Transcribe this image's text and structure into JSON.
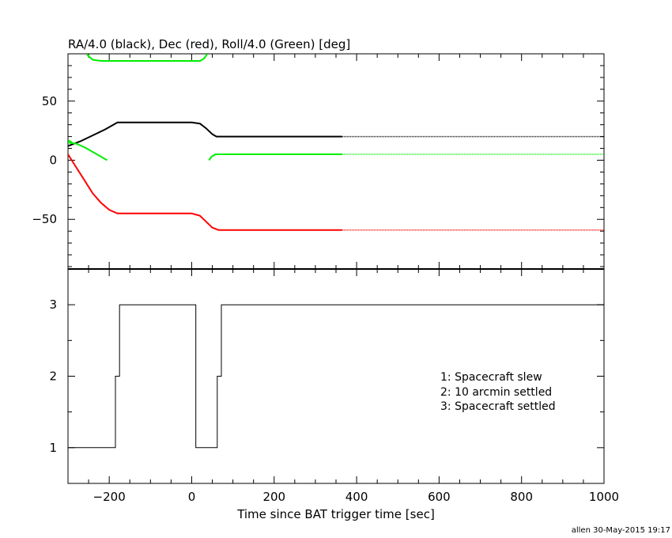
{
  "top_panel": {
    "title": "RA/4.0 (black), Dec (red), Roll/4.0 (Green) [deg]"
  },
  "bottom_panel": {
    "xlabel": "Time since BAT trigger time [sec]",
    "legend": [
      "1: Spacecraft slew",
      "2: 10 arcmin settled",
      "3: Spacecraft settled"
    ]
  },
  "footer": {
    "credit": "allen 30-May-2015 19:17"
  },
  "chart_data": [
    {
      "type": "line",
      "title": "RA/4.0 (black), Dec (red), Roll/4.0 (Green) [deg]",
      "xlim": [
        -300,
        1000
      ],
      "ylim": [
        -92,
        90
      ],
      "yticks": [
        -50,
        0,
        50
      ],
      "xticks": [
        -200,
        0,
        200,
        400,
        600,
        800,
        1000
      ],
      "tick_labels": {
        "-50": "−50",
        "0": "0",
        "50": "50"
      },
      "colors": {
        "ra": "#000000",
        "dec": "#ff0000",
        "roll": "#00ee00"
      },
      "series": [
        {
          "key": "ra",
          "solid": [
            [
              -300,
              12
            ],
            [
              -270,
              16
            ],
            [
              -240,
              21
            ],
            [
              -210,
              26
            ],
            [
              -180,
              32
            ],
            [
              -150,
              32
            ],
            [
              0,
              32
            ],
            [
              20,
              31
            ],
            [
              35,
              27
            ],
            [
              50,
              22
            ],
            [
              60,
              20
            ],
            [
              70,
              20
            ],
            [
              365,
              20
            ]
          ],
          "dotted": [
            [
              365,
              20
            ],
            [
              1000,
              20
            ]
          ]
        },
        {
          "key": "dec",
          "solid": [
            [
              -300,
              5
            ],
            [
              -280,
              -6
            ],
            [
              -260,
              -17
            ],
            [
              -240,
              -28
            ],
            [
              -220,
              -36
            ],
            [
              -200,
              -42
            ],
            [
              -180,
              -45
            ],
            [
              0,
              -45
            ],
            [
              20,
              -47
            ],
            [
              35,
              -52
            ],
            [
              50,
              -57
            ],
            [
              65,
              -59
            ],
            [
              365,
              -59
            ]
          ],
          "dotted": [
            [
              365,
              -59
            ],
            [
              1000,
              -59
            ]
          ]
        },
        {
          "key": "roll",
          "segments": [
            [
              [
                -300,
                15
              ],
              [
                -280,
                14
              ],
              [
                -260,
                11
              ],
              [
                -240,
                7
              ],
              [
                -220,
                3
              ],
              [
                -205,
                0
              ]
            ],
            [
              [
                -300,
                17
              ],
              [
                -290,
                15
              ]
            ],
            [
              [
                -255,
                90
              ],
              [
                -250,
                88
              ],
              [
                -240,
                85
              ],
              [
                -220,
                84
              ],
              [
                -180,
                84
              ],
              [
                20,
                84
              ],
              [
                30,
                86
              ],
              [
                38,
                90
              ]
            ],
            [
              [
                42,
                0
              ],
              [
                48,
                3
              ],
              [
                58,
                5
              ],
              [
                365,
                5
              ]
            ]
          ],
          "dotted": [
            [
              365,
              5
            ],
            [
              1000,
              5
            ]
          ]
        }
      ]
    },
    {
      "type": "line",
      "xlabel": "Time since BAT trigger time [sec]",
      "xlim": [
        -300,
        1000
      ],
      "ylim": [
        0.5,
        3.5
      ],
      "yticks": [
        1,
        2,
        3
      ],
      "xticks": [
        -200,
        0,
        200,
        400,
        600,
        800,
        1000
      ],
      "tick_labels": {
        "-200": "−200",
        "0": "0",
        "200": "200",
        "400": "400",
        "600": "600",
        "800": "800",
        "1000": "1000"
      },
      "series": [
        {
          "key": "status",
          "step": [
            [
              -300,
              1
            ],
            [
              -185,
              1
            ],
            [
              -185,
              2
            ],
            [
              -175,
              2
            ],
            [
              -175,
              3
            ],
            [
              10,
              3
            ],
            [
              10,
              1
            ],
            [
              62,
              1
            ],
            [
              62,
              2
            ],
            [
              72,
              2
            ],
            [
              72,
              3
            ],
            [
              1000,
              3
            ]
          ]
        }
      ]
    }
  ]
}
